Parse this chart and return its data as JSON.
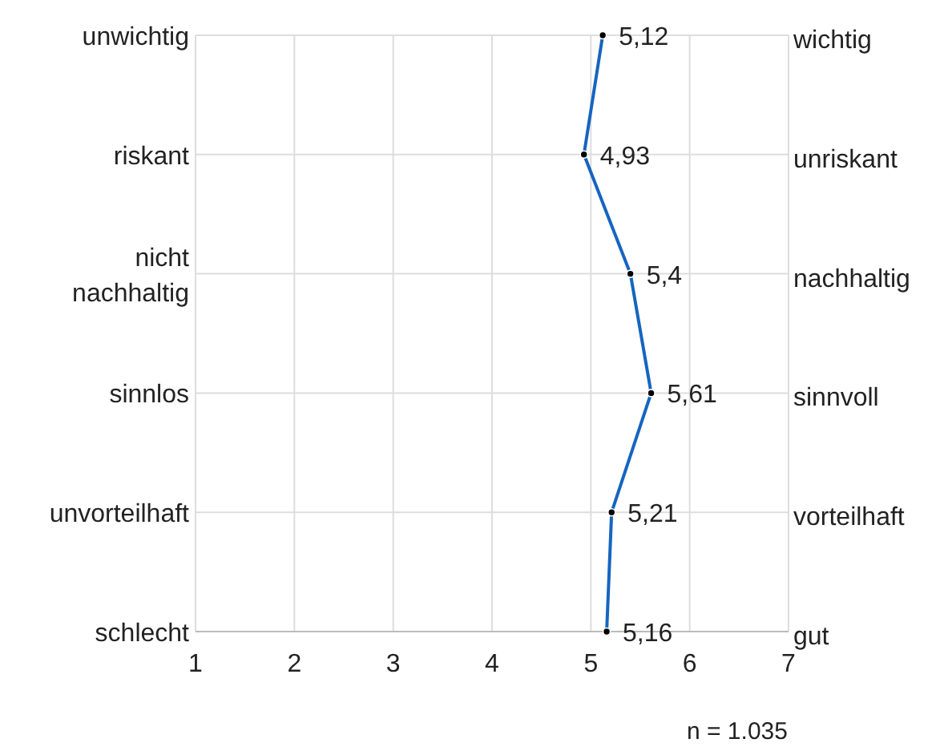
{
  "chart_data": {
    "type": "line",
    "orientation": "horizontal",
    "categories": [
      "unwichtig",
      "riskant",
      "nicht nachhaltig",
      "sinnlos",
      "unvorteilhaft",
      "schlecht"
    ],
    "y2_categories": [
      "wichtig",
      "unriskant",
      "nachhaltig",
      "sinnvoll",
      "vorteilhaft",
      "gut"
    ],
    "series": [
      {
        "color": "#1565c0",
        "values": [
          5.12,
          4.93,
          5.4,
          5.61,
          5.21,
          5.16
        ],
        "value_labels": [
          "5,12",
          "4,93",
          "5,4",
          "5,61",
          "5,21",
          "5,16"
        ]
      }
    ],
    "xlim": [
      1,
      7
    ],
    "xticks": [
      1,
      2,
      3,
      4,
      5,
      6,
      7
    ],
    "grid": true,
    "marker": "circle",
    "line_style": "solid",
    "annotations": [
      "n = 1.035"
    ]
  }
}
